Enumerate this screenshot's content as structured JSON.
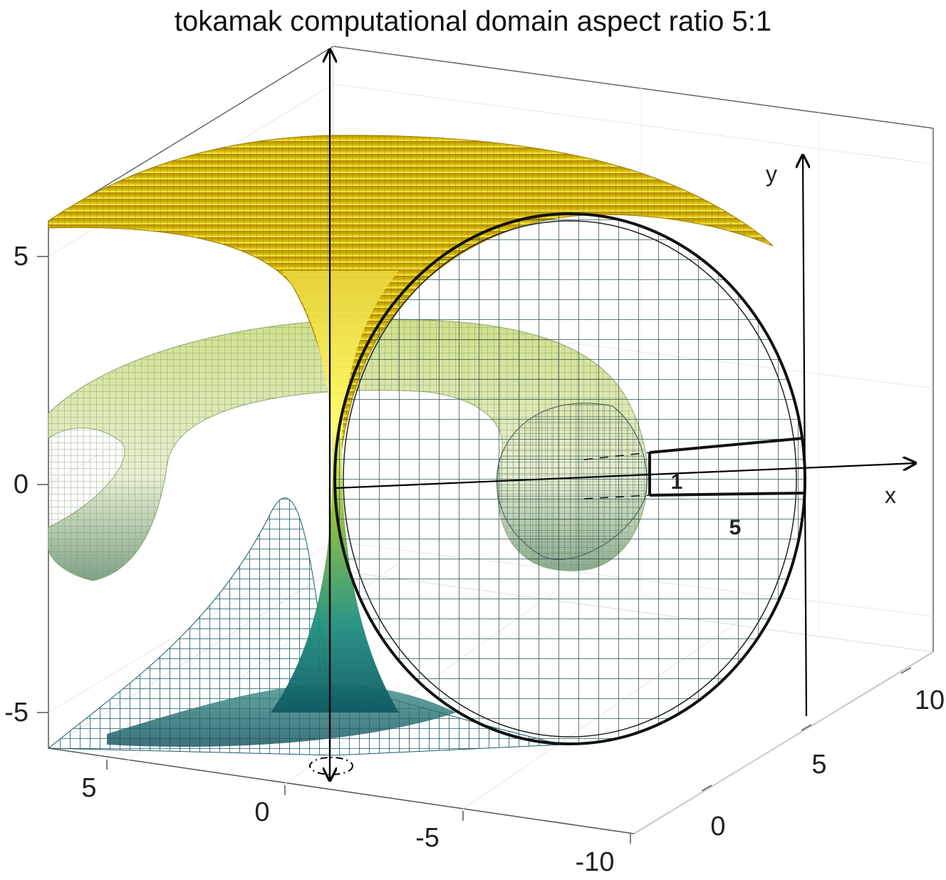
{
  "title": "tokamak computational domain  aspect ratio 5:1",
  "axes": {
    "z_ticks": [
      "5",
      "0",
      "-5"
    ],
    "x_ticks": [
      "5",
      "0",
      "-5",
      "-10"
    ],
    "y_ticks": [
      "0",
      "5",
      "10"
    ]
  },
  "annotations": {
    "y_label": "y",
    "x_label": "x",
    "minor_radius": "1",
    "major_radius": "5"
  },
  "colors": {
    "top": "#c9a600",
    "mid": "#c5db7a",
    "bottom": "#0f5a63",
    "mesh_dark": "#1f3f3f",
    "frame": "#555555",
    "grid": "#dddddd"
  }
}
